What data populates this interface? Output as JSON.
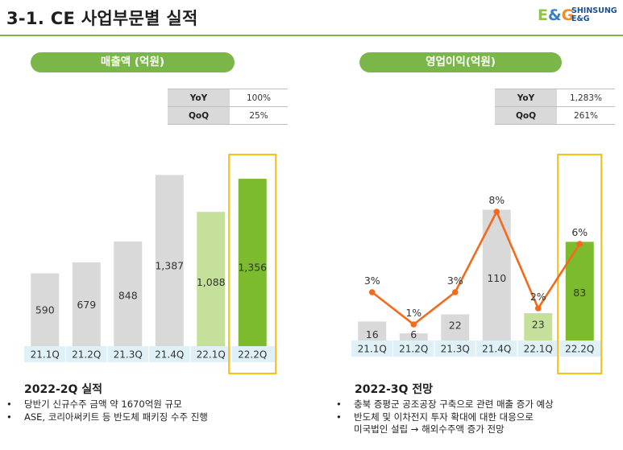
{
  "header": {
    "title": "3-1. CE 사업부문별 실적",
    "logo_mark": "E&G",
    "logo_line1": "SHINSUNG",
    "logo_line2": "E&G"
  },
  "left": {
    "pill": "매출액 (억원)",
    "kpi": [
      {
        "label": "YoY",
        "value": "100%"
      },
      {
        "label": "QoQ",
        "value": "25%"
      }
    ],
    "section_title": "2022-2Q 실적",
    "bullet_glyph": "•",
    "notes": [
      "당반기 신규수주 금액 약 1670억원 규모",
      "ASE, 코리아써키트 등 반도체 패키징 수주 진행"
    ]
  },
  "right": {
    "pill": "영업이익(억원)",
    "kpi": [
      {
        "label": "YoY",
        "value": "1,283%"
      },
      {
        "label": "QoQ",
        "value": "261%"
      }
    ],
    "section_title": "2022-3Q 전망",
    "bullet_glyph": "•",
    "notes": [
      "충북 증평군 공조공장 구축으로 관련 매출 증가 예상",
      "반도체 및 이차전지 투자 확대에 대한 대응으로",
      "미국법인 설립 → 해외수주액 증가 전망"
    ]
  },
  "colors": {
    "bar_gray": "#d9d9d9",
    "bar_light_green": "#c5e09b",
    "bar_green": "#7cba2e",
    "line_orange": "#f26b1d",
    "highlight": "#f4c21b",
    "axis_band": "#dff1f7"
  },
  "chart_data": [
    {
      "type": "bar",
      "categories": [
        "21.1Q",
        "21.2Q",
        "21.3Q",
        "21.4Q",
        "22.1Q",
        "22.2Q"
      ],
      "series": [
        {
          "values": [
            590,
            679,
            848,
            1387,
            1088,
            1356
          ],
          "labels": [
            "590",
            "679",
            "848",
            "1,387",
            "1,088",
            "1,356"
          ]
        }
      ],
      "bar_colors": [
        "gray",
        "gray",
        "gray",
        "gray",
        "light_green",
        "green"
      ],
      "highlight_category": "22.2Q",
      "ylim": [
        0,
        1500
      ]
    },
    {
      "type": "bar",
      "categories": [
        "21.1Q",
        "21.2Q",
        "21.3Q",
        "21.4Q",
        "22.1Q",
        "22.2Q"
      ],
      "series": [
        {
          "values": [
            16,
            6,
            22,
            110,
            23,
            83
          ],
          "labels": [
            "16",
            "6",
            "22",
            "110",
            "23",
            "83"
          ]
        },
        {
          "type": "line",
          "values": [
            3,
            1,
            3,
            8,
            2,
            6
          ],
          "labels": [
            "3%",
            "1%",
            "3%",
            "8%",
            "2%",
            "6%"
          ]
        }
      ],
      "bar_colors": [
        "gray",
        "gray",
        "gray",
        "gray",
        "light_green",
        "green"
      ],
      "highlight_category": "22.2Q",
      "ylim": [
        0,
        130
      ],
      "line_ylim": [
        0,
        9.6
      ]
    }
  ]
}
